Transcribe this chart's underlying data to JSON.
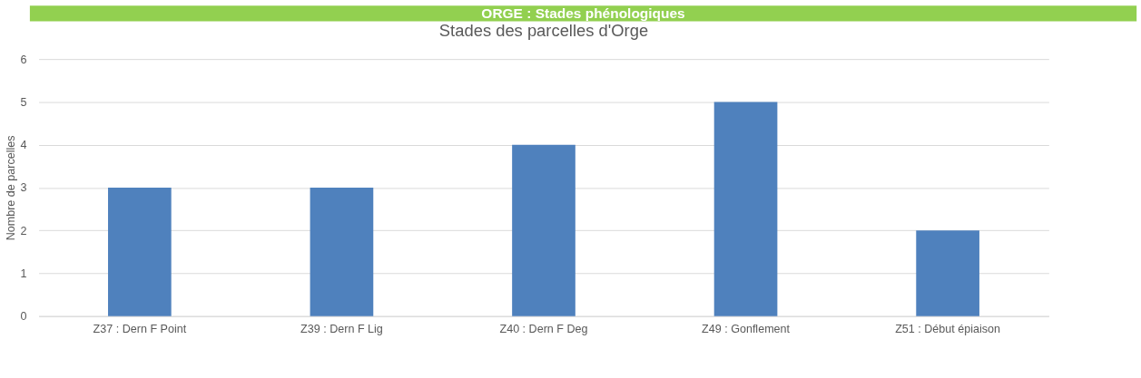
{
  "chart_data": {
    "type": "bar",
    "title": "Stades des parcelles d'Orge",
    "ylabel": "Nombre de parcelles",
    "annotations": [
      "ORGE : Stades phénologiques"
    ],
    "categories": [
      "Z37 : Dern F Point",
      "Z39 : Dern F Lig",
      "Z40 : Dern F Deg",
      "Z49 : Gonflement",
      "Z51 : Début épiaison"
    ],
    "values": [
      3,
      3,
      4,
      5,
      2
    ],
    "color": "#4f81bd",
    "ylim": [
      0,
      6
    ],
    "yticks": [
      0,
      1,
      2,
      3,
      4,
      5,
      6
    ],
    "grid": "y"
  }
}
